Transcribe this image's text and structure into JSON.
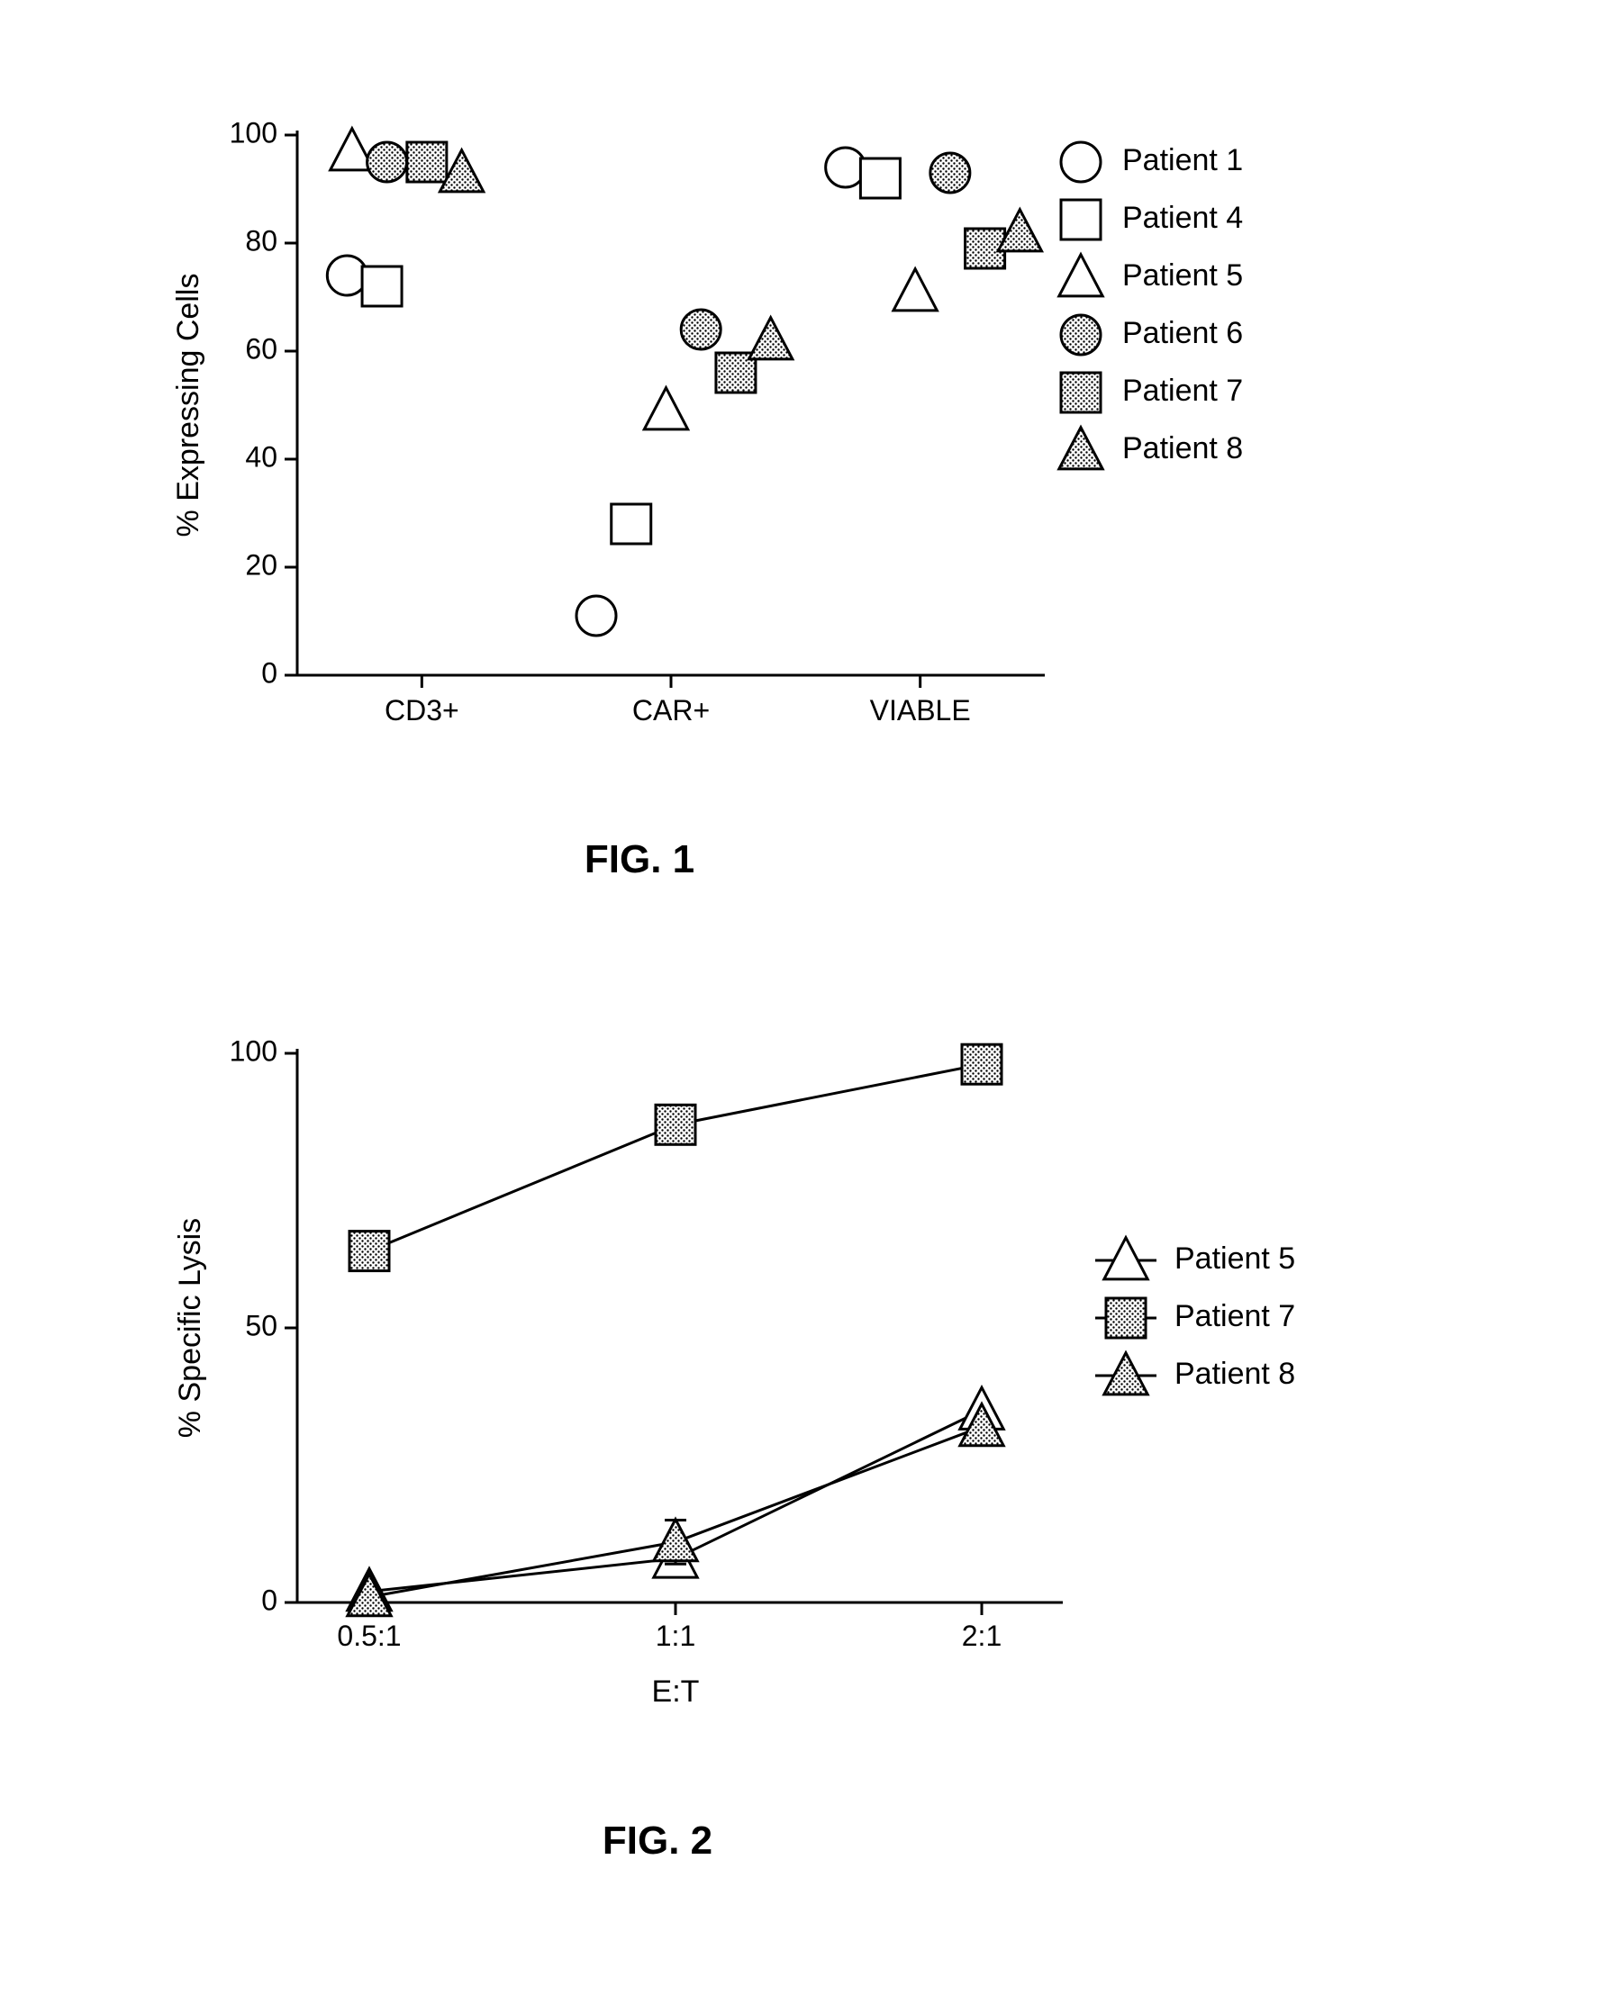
{
  "fig1": {
    "caption": "FIG. 1",
    "type": "scatter",
    "ylabel": "% Expressing Cells",
    "x_categories": [
      "CD3+",
      "CAR+",
      "VIABLE"
    ],
    "ylim": [
      0,
      100
    ],
    "yticks": [
      0,
      20,
      40,
      60,
      80,
      100
    ],
    "marker_size": 22,
    "line_width": 3,
    "axis_color": "#000000",
    "text_color": "#000000",
    "fill_pattern_color": "#000000",
    "tick_fontsize": 32,
    "label_fontsize": 34,
    "legend_fontsize": 34,
    "caption_fontsize": 44,
    "series": [
      {
        "name": "Patient 1",
        "marker": "circle",
        "filled": false,
        "values": [
          74,
          11,
          94
        ],
        "x_offsets": [
          -0.3,
          -0.3,
          -0.3
        ]
      },
      {
        "name": "Patient 4",
        "marker": "square",
        "filled": false,
        "values": [
          72,
          28,
          92
        ],
        "x_offsets": [
          -0.16,
          -0.16,
          -0.16
        ]
      },
      {
        "name": "Patient 5",
        "marker": "triangle",
        "filled": false,
        "values": [
          97,
          49,
          71
        ],
        "x_offsets": [
          -0.28,
          -0.02,
          -0.02
        ]
      },
      {
        "name": "Patient 6",
        "marker": "circle",
        "filled": true,
        "values": [
          95,
          64,
          93
        ],
        "x_offsets": [
          -0.14,
          0.12,
          0.12
        ]
      },
      {
        "name": "Patient 7",
        "marker": "square",
        "filled": true,
        "values": [
          95,
          56,
          79
        ],
        "x_offsets": [
          0.02,
          0.26,
          0.26
        ]
      },
      {
        "name": "Patient 8",
        "marker": "triangle",
        "filled": true,
        "values": [
          93,
          62,
          82
        ],
        "x_offsets": [
          0.16,
          0.4,
          0.4
        ]
      }
    ],
    "legend": [
      "Patient 1",
      "Patient 4",
      "Patient 5",
      "Patient 6",
      "Patient 7",
      "Patient 8"
    ]
  },
  "fig2": {
    "caption": "FIG. 2",
    "type": "line",
    "ylabel": "% Specific Lysis",
    "xlabel": "E:T",
    "x_categories": [
      "0.5:1",
      "1:1",
      "2:1"
    ],
    "ylim": [
      0,
      100
    ],
    "yticks": [
      0,
      50,
      100
    ],
    "marker_size": 22,
    "line_width": 3,
    "axis_color": "#000000",
    "text_color": "#000000",
    "fill_pattern_color": "#000000",
    "tick_fontsize": 32,
    "label_fontsize": 34,
    "legend_fontsize": 34,
    "caption_fontsize": 44,
    "series": [
      {
        "name": "Patient 5",
        "marker": "triangle",
        "filled": false,
        "values": [
          2,
          8,
          35
        ],
        "errors": [
          0,
          0,
          0
        ]
      },
      {
        "name": "Patient 7",
        "marker": "square",
        "filled": true,
        "values": [
          64,
          87,
          98
        ],
        "errors": [
          0,
          0,
          0
        ]
      },
      {
        "name": "Patient 8",
        "marker": "triangle",
        "filled": true,
        "values": [
          1,
          11,
          32
        ],
        "errors": [
          0,
          4,
          0
        ]
      }
    ],
    "legend": [
      "Patient 5",
      "Patient 7",
      "Patient 8"
    ]
  }
}
